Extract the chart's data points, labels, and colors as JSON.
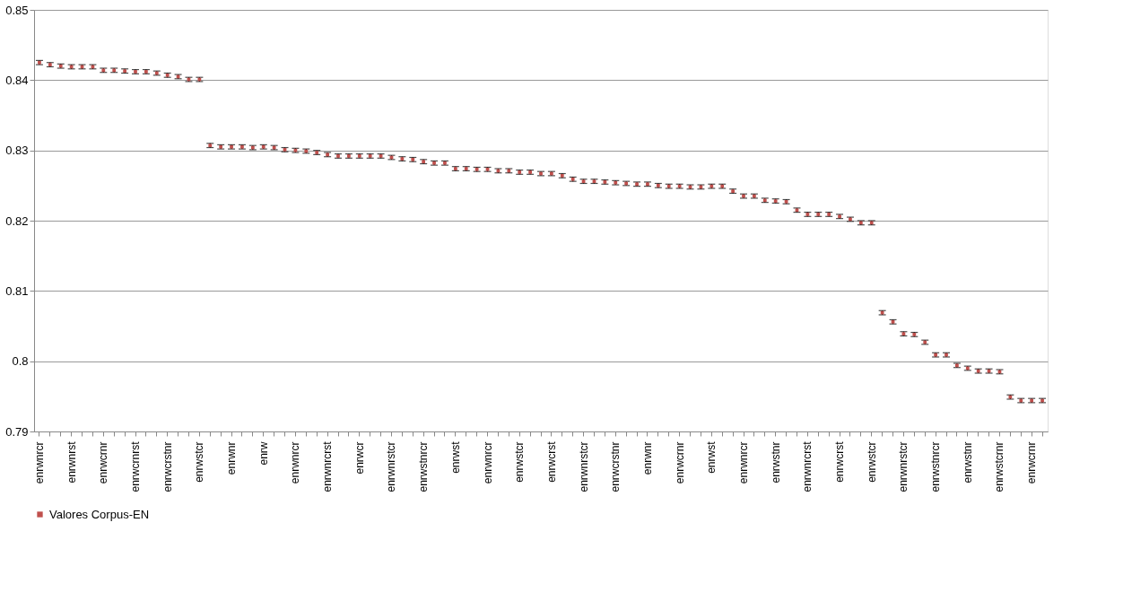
{
  "chart_data": {
    "type": "scatter",
    "categories": [
      "enrwnrcr",
      null,
      null,
      "enrwnrst",
      null,
      null,
      "enrwcrnr",
      null,
      null,
      "enrwcrnrst",
      null,
      null,
      "enrwcrstnr",
      null,
      null,
      "enrwstcr",
      null,
      null,
      "enrwnr",
      null,
      null,
      "enrw",
      null,
      null,
      "enrwnrcr",
      null,
      null,
      "enrwnrcrst",
      null,
      null,
      "enrwcr",
      null,
      null,
      "enrwnrstcr",
      null,
      null,
      "enrwstnrcr",
      null,
      null,
      "enrwst",
      null,
      null,
      "enrwnrcr",
      null,
      null,
      "enrwstcr",
      null,
      null,
      "enrwcrst",
      null,
      null,
      "enrwnrstcr",
      null,
      null,
      "enrwcrstnr",
      null,
      null,
      "enrwnr",
      null,
      null,
      "enrwcrnr",
      null,
      null,
      "enrwst",
      null,
      null,
      "enrwnrcr",
      null,
      null,
      "enrwstnr",
      null,
      null,
      "enrwnrcrst",
      null,
      null,
      "enrwcrst",
      null,
      null,
      "enrwstcr",
      null,
      null,
      "enrwnrstcr",
      null,
      null,
      "enrwstnrcr",
      null,
      null,
      "enrwstnr",
      null,
      null,
      "enrwstcrnr",
      null,
      null,
      "enrwcrnr",
      null
    ],
    "series": [
      {
        "name": "Valores Corpus-EN",
        "color": "#c0504d",
        "values": [
          0.8425,
          0.8422,
          0.842,
          0.8419,
          0.8419,
          0.8419,
          0.8414,
          0.8414,
          0.8413,
          0.8412,
          0.8412,
          0.841,
          0.8407,
          0.8405,
          0.8401,
          0.8401,
          0.8307,
          0.8305,
          0.8305,
          0.8305,
          0.8304,
          0.8305,
          0.8304,
          0.8301,
          0.83,
          0.8299,
          0.8297,
          0.8294,
          0.8292,
          0.8292,
          0.8292,
          0.8292,
          0.8292,
          0.829,
          0.8288,
          0.8287,
          0.8284,
          0.8282,
          0.8282,
          0.8274,
          0.8274,
          0.8273,
          0.8273,
          0.8271,
          0.8271,
          0.8269,
          0.8269,
          0.8267,
          0.8267,
          0.8264,
          0.8259,
          0.8256,
          0.8256,
          0.8255,
          0.8254,
          0.8253,
          0.8252,
          0.8252,
          0.825,
          0.8249,
          0.8249,
          0.8248,
          0.8248,
          0.8249,
          0.8249,
          0.8242,
          0.8235,
          0.8235,
          0.8229,
          0.8228,
          0.8227,
          0.8215,
          0.8209,
          0.8209,
          0.8209,
          0.8206,
          0.8202,
          0.8197,
          0.8197,
          0.8069,
          0.8056,
          0.8039,
          0.8038,
          0.8027,
          0.8009,
          0.8009,
          0.7994,
          0.799,
          0.7986,
          0.7986,
          0.7985,
          0.7949,
          0.7944,
          0.7944,
          0.7944
        ],
        "errors": [
          0.0003,
          0.0003,
          0.0003,
          0.0003,
          0.0003,
          0.0003,
          0.0003,
          0.0003,
          0.0003,
          0.0003,
          0.0003,
          0.0003,
          0.0003,
          0.0003,
          0.0003,
          0.0003,
          0.0003,
          0.0003,
          0.0003,
          0.0003,
          0.0003,
          0.0003,
          0.0003,
          0.0003,
          0.0003,
          0.0003,
          0.0003,
          0.0003,
          0.0003,
          0.0003,
          0.0003,
          0.0003,
          0.0003,
          0.0003,
          0.0003,
          0.0003,
          0.0003,
          0.0003,
          0.0003,
          0.0003,
          0.0003,
          0.0003,
          0.0003,
          0.0003,
          0.0003,
          0.0003,
          0.0003,
          0.0003,
          0.0003,
          0.0003,
          0.0003,
          0.0003,
          0.0003,
          0.0003,
          0.0003,
          0.0003,
          0.0003,
          0.0003,
          0.0003,
          0.0003,
          0.0003,
          0.0003,
          0.0003,
          0.0003,
          0.0003,
          0.0003,
          0.0003,
          0.0003,
          0.0003,
          0.0003,
          0.0003,
          0.0003,
          0.0003,
          0.0003,
          0.0003,
          0.0003,
          0.0003,
          0.0003,
          0.0003,
          0.0003,
          0.0003,
          0.0003,
          0.0003,
          0.0003,
          0.0003,
          0.0003,
          0.0003,
          0.0003,
          0.0003,
          0.0003,
          0.0003,
          0.0003,
          0.0003,
          0.0003,
          0.0003
        ]
      }
    ],
    "ylim": [
      0.79,
      0.85
    ],
    "yticks": [
      0.79,
      0.8,
      0.81,
      0.82,
      0.83,
      0.84,
      0.85
    ],
    "grid": "y",
    "legend": "bottom",
    "marker": "square"
  }
}
